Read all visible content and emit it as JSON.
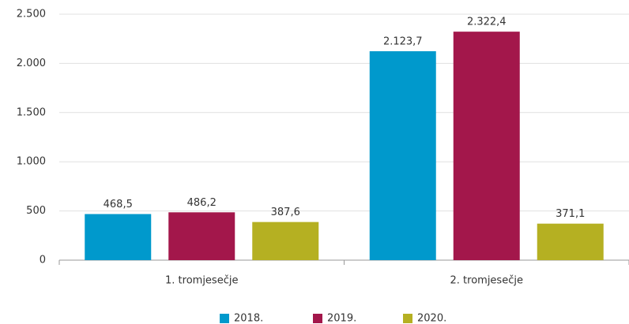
{
  "chart_data": {
    "type": "bar",
    "categories": [
      "1. tromjesečje",
      "2. tromjesečje"
    ],
    "series": [
      {
        "name": "2018.",
        "color": "#0099cc",
        "values": [
          468.5,
          2123.7
        ],
        "value_labels": [
          "468,5",
          "2.123,7"
        ]
      },
      {
        "name": "2019.",
        "color": "#a3174b",
        "values": [
          486.2,
          2322.4
        ],
        "value_labels": [
          "486,2",
          "2.322,4"
        ]
      },
      {
        "name": "2020.",
        "color": "#b5b022",
        "values": [
          387.6,
          371.1
        ],
        "value_labels": [
          "387,6",
          "371,1"
        ]
      }
    ],
    "ylim": [
      0,
      2500
    ],
    "yticks": [
      0,
      500,
      {
        "value": 1000,
        "label": "1.000"
      },
      {
        "value": 1500,
        "label": "1.500"
      },
      {
        "value": 2000,
        "label": "2.000"
      },
      {
        "value": 2500,
        "label": "2.500"
      }
    ],
    "grid": true,
    "legend": "bottom"
  }
}
